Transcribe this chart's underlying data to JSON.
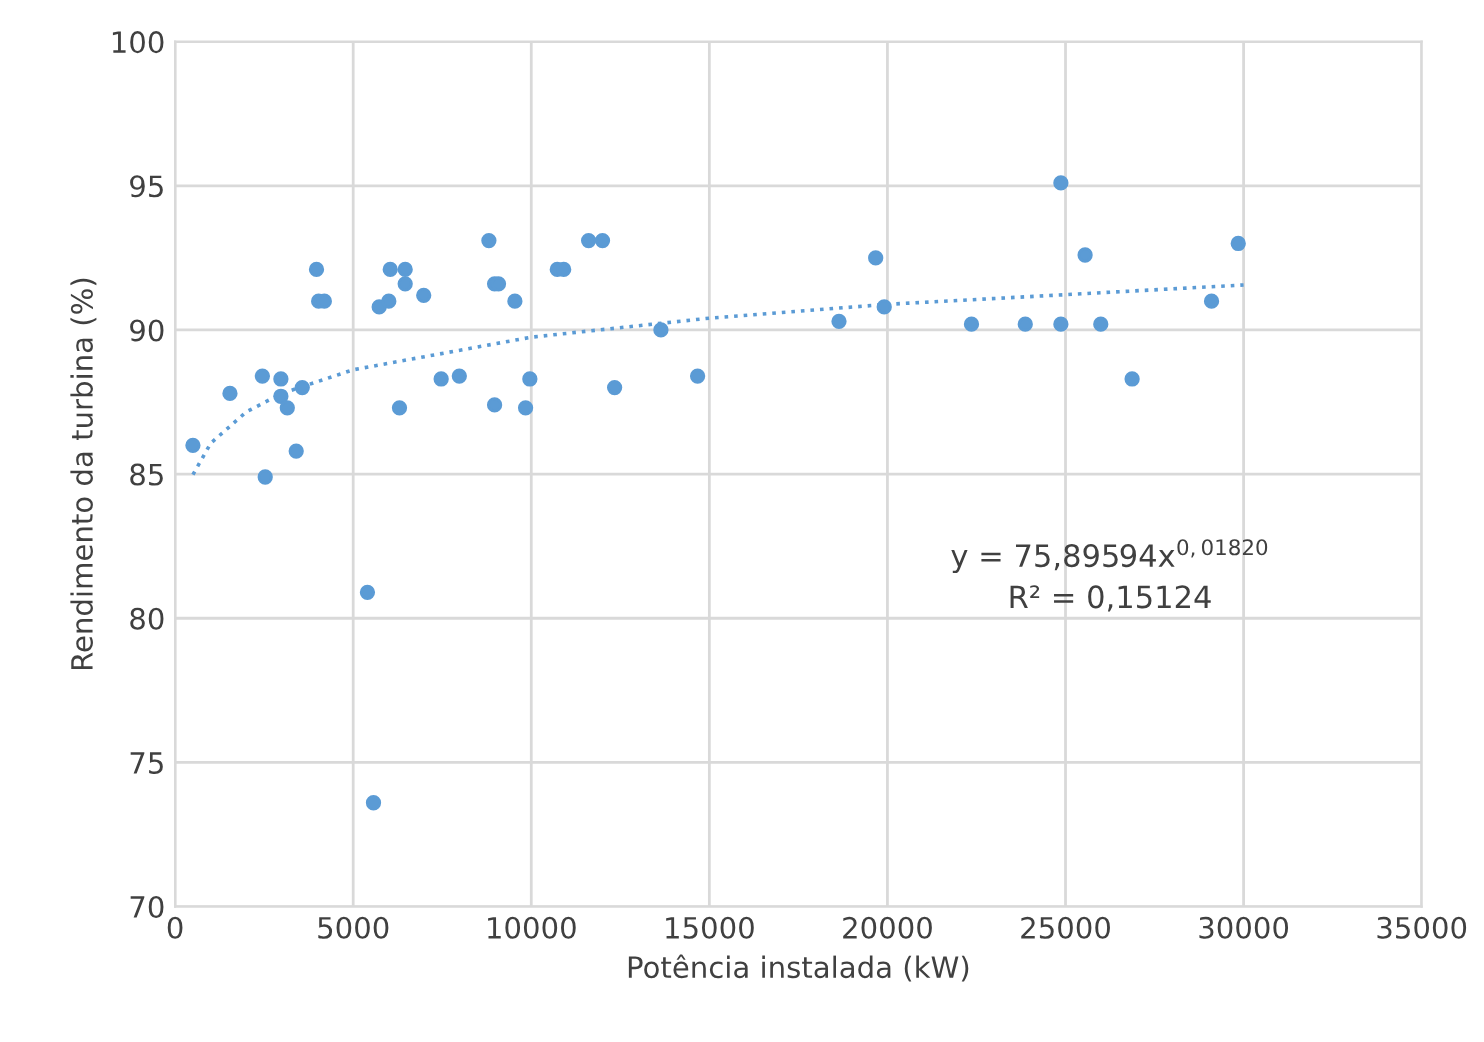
{
  "chart_data": {
    "type": "scatter",
    "xlabel": "Potência instalada (kW)",
    "ylabel": "Rendimento da turbina (%)",
    "xlim": [
      0,
      35000
    ],
    "xticks": [
      0,
      5000,
      10000,
      15000,
      20000,
      25000,
      30000,
      35000
    ],
    "ylim": [
      70,
      100
    ],
    "yticks": [
      70,
      75,
      80,
      85,
      90,
      95,
      100
    ],
    "grid": true,
    "marker": "circle",
    "series": [
      {
        "color": "#5b9bd5",
        "x": [
          500,
          1540,
          2450,
          2530,
          2970,
          2970,
          3150,
          3400,
          3570,
          3970,
          4030,
          4190,
          5400,
          5570,
          5730,
          6000,
          6040,
          6300,
          6460,
          6460,
          6980,
          7470,
          7980,
          8810,
          8970,
          8970,
          9080,
          9540,
          9840,
          9960,
          10730,
          10910,
          11610,
          12000,
          12340,
          13640,
          14670,
          18640,
          19670,
          19910,
          22360,
          23870,
          24870,
          24870,
          25550,
          25990,
          26870,
          29100,
          29850
        ],
        "values": [
          86.0,
          87.8,
          88.4,
          84.9,
          88.3,
          87.7,
          87.3,
          85.8,
          88.0,
          92.1,
          91.0,
          91.0,
          80.9,
          73.6,
          90.8,
          91.0,
          92.1,
          87.3,
          92.1,
          91.6,
          91.2,
          88.3,
          88.4,
          93.1,
          87.4,
          91.6,
          91.6,
          91.0,
          87.3,
          88.3,
          92.1,
          92.1,
          93.1,
          93.1,
          88.0,
          90.0,
          88.4,
          90.3,
          92.5,
          90.8,
          90.2,
          90.2,
          90.2,
          95.1,
          92.6,
          90.2,
          88.3,
          91.0,
          93.0
        ]
      },
      {
        "type": "line",
        "line_style": "dotted",
        "marker": "none",
        "color": "#5b9bd5",
        "x": [
          500,
          1000,
          2000,
          3000,
          5000,
          10000,
          15000,
          20000,
          30000
        ],
        "values": [
          84.98,
          86.07,
          87.16,
          87.8,
          88.62,
          89.75,
          90.41,
          90.89,
          91.56
        ]
      }
    ],
    "annotations": [
      "y = 75,89594x$^{0,01820}$",
      "R² = 0,15124"
    ]
  }
}
